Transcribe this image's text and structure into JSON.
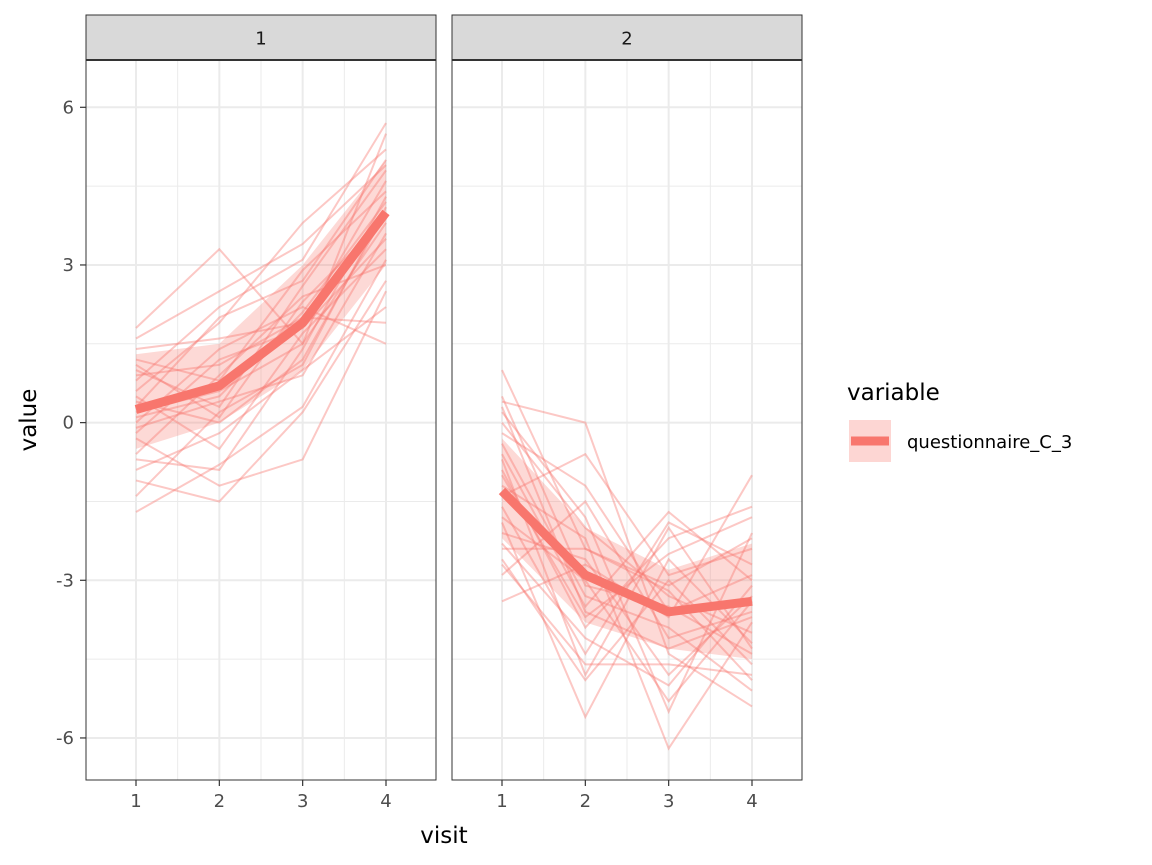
{
  "chart_data": {
    "type": "line",
    "xlabel": "visit",
    "ylabel": "value",
    "x_ticks": [
      "1",
      "2",
      "3",
      "4"
    ],
    "y_ticks": [
      "-6",
      "-3",
      "0",
      "3",
      "6"
    ],
    "xlim": [
      0.4,
      4.6
    ],
    "ylim": [
      -6.8,
      6.9
    ],
    "grid": true,
    "legend": {
      "title": "variable",
      "entries": [
        "questionnaire_C_3"
      ],
      "position": "right"
    },
    "colors": {
      "series": "#f8766d",
      "strip_fill": "#d9d9d9",
      "panel_border": "#333333",
      "grid": "#ebebeb"
    },
    "panels": [
      {
        "label": "1",
        "mean": {
          "name": "questionnaire_C_3",
          "x": [
            1,
            2,
            3,
            4
          ],
          "y": [
            0.25,
            0.7,
            1.9,
            4.0
          ]
        },
        "ribbon": {
          "x": [
            1,
            2,
            3,
            4
          ],
          "lower": [
            -0.5,
            0.0,
            1.0,
            3.0
          ],
          "upper": [
            1.3,
            1.5,
            3.0,
            5.0
          ]
        },
        "subjects": [
          [
            -1.7,
            -0.8,
            0.3,
            3.1
          ],
          [
            1.8,
            3.3,
            1.5,
            5.5
          ],
          [
            0.1,
            0.5,
            2.1,
            4.2
          ],
          [
            -0.2,
            1.2,
            1.8,
            3.5
          ],
          [
            1.0,
            0.3,
            2.6,
            4.8
          ],
          [
            -1.1,
            -1.5,
            0.2,
            2.7
          ],
          [
            0.6,
            1.9,
            3.8,
            5.2
          ],
          [
            0.4,
            0.0,
            1.2,
            4.0
          ],
          [
            -0.6,
            0.9,
            2.4,
            3.0
          ],
          [
            1.4,
            1.6,
            1.9,
            4.6
          ],
          [
            -0.9,
            -0.2,
            1.0,
            2.2
          ],
          [
            0.8,
            2.2,
            3.1,
            5.7
          ],
          [
            0.2,
            0.6,
            1.5,
            3.8
          ],
          [
            -0.3,
            -1.2,
            -0.7,
            2.5
          ],
          [
            1.2,
            0.8,
            2.9,
            4.4
          ],
          [
            0.0,
            1.4,
            2.2,
            1.5
          ],
          [
            0.5,
            -0.5,
            1.7,
            3.3
          ],
          [
            -1.4,
            0.2,
            1.1,
            4.1
          ],
          [
            1.6,
            2.5,
            3.4,
            4.9
          ],
          [
            -0.1,
            0.4,
            0.9,
            3.6
          ],
          [
            0.9,
            1.1,
            2.0,
            1.9
          ],
          [
            -0.7,
            -0.9,
            1.4,
            4.3
          ],
          [
            0.3,
            2.0,
            2.7,
            5.0
          ],
          [
            1.1,
            0.1,
            2.3,
            3.9
          ]
        ]
      },
      {
        "label": "2",
        "mean": {
          "name": "questionnaire_C_3",
          "x": [
            1,
            2,
            3,
            4
          ],
          "y": [
            -1.3,
            -2.9,
            -3.6,
            -3.4
          ]
        },
        "ribbon": {
          "x": [
            1,
            2,
            3,
            4
          ],
          "lower": [
            -2.2,
            -3.8,
            -4.3,
            -4.5
          ],
          "upper": [
            -0.3,
            -2.0,
            -2.8,
            -2.3
          ]
        },
        "subjects": [
          [
            1.0,
            -2.4,
            -3.2,
            -4.9
          ],
          [
            -3.4,
            -2.7,
            -3.7,
            -1.0
          ],
          [
            0.4,
            0.0,
            -4.4,
            -5.4
          ],
          [
            -0.6,
            -3.5,
            -1.7,
            -3.0
          ],
          [
            -1.9,
            -5.6,
            -2.6,
            -4.2
          ],
          [
            0.2,
            -1.8,
            -5.5,
            -2.1
          ],
          [
            -2.6,
            -4.9,
            -3.0,
            -4.6
          ],
          [
            -1.2,
            -2.2,
            -6.2,
            -3.8
          ],
          [
            -0.9,
            -3.9,
            -2.2,
            -1.6
          ],
          [
            -2.1,
            -2.6,
            -4.8,
            -3.3
          ],
          [
            0.5,
            -3.1,
            -3.5,
            -4.4
          ],
          [
            -1.6,
            -4.4,
            -1.9,
            -2.7
          ],
          [
            -2.9,
            -1.5,
            -4.1,
            -3.6
          ],
          [
            -0.4,
            -3.3,
            -3.9,
            -5.1
          ],
          [
            -1.4,
            -0.6,
            -2.9,
            -2.4
          ],
          [
            -2.3,
            -4.1,
            -5.0,
            -3.1
          ],
          [
            0.0,
            -2.0,
            -3.3,
            -4.0
          ],
          [
            -1.0,
            -3.7,
            -2.5,
            -1.8
          ],
          [
            -2.7,
            -4.6,
            -4.6,
            -4.8
          ],
          [
            -0.2,
            -1.2,
            -3.6,
            -2.9
          ],
          [
            -1.8,
            -3.0,
            -5.3,
            -3.4
          ],
          [
            -0.7,
            -4.8,
            -2.0,
            -4.3
          ],
          [
            -2.4,
            -2.4,
            -3.1,
            -2.2
          ],
          [
            0.3,
            -3.6,
            -4.3,
            -3.7
          ]
        ]
      }
    ]
  }
}
